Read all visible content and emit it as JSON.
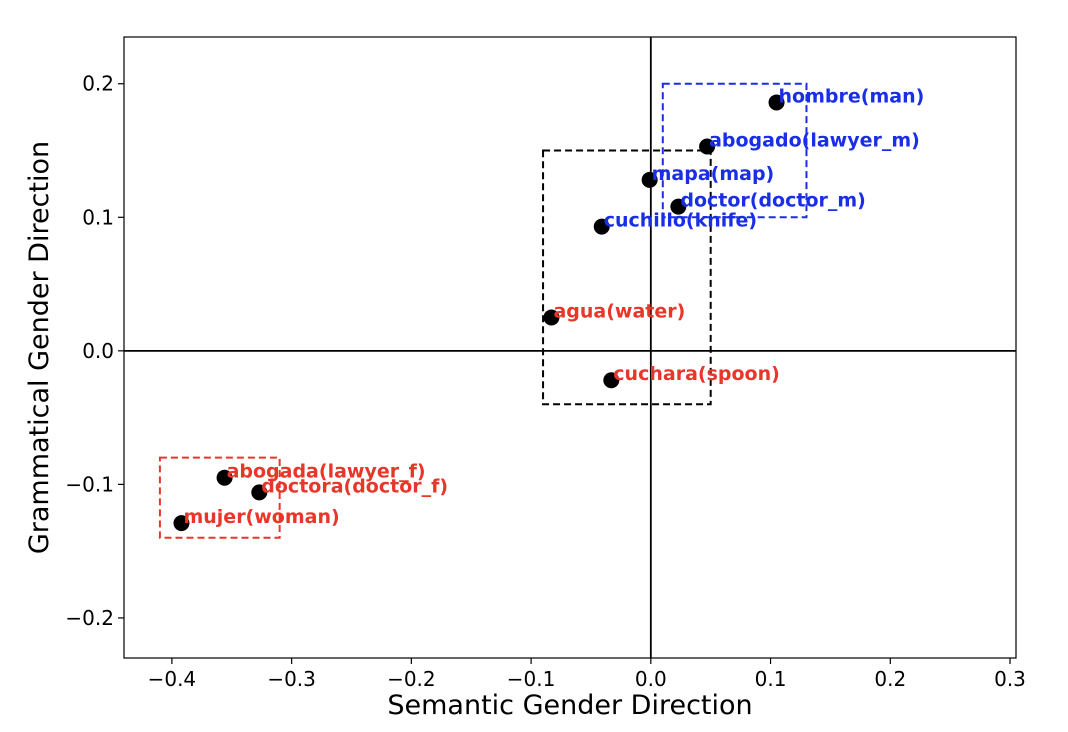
{
  "chart_data": {
    "type": "scatter",
    "xlabel": "Semantic Gender Direction",
    "ylabel": "Grammatical Gender Direction",
    "xlim": [
      -0.44,
      0.305
    ],
    "ylim": [
      -0.23,
      0.235
    ],
    "xticks": [
      -0.4,
      -0.3,
      -0.2,
      -0.1,
      0.0,
      0.1,
      0.2,
      0.3
    ],
    "yticks": [
      -0.2,
      -0.1,
      0.0,
      0.1,
      0.2
    ],
    "xtick_labels": [
      "−0.4",
      "−0.3",
      "−0.2",
      "−0.1",
      "0.0",
      "0.1",
      "0.2",
      "0.3"
    ],
    "ytick_labels": [
      "−0.2",
      "−0.1",
      "0.0",
      "0.1",
      "0.2"
    ],
    "grid": false,
    "reference_lines": {
      "x": 0.0,
      "y": 0.0
    },
    "points": [
      {
        "label": "hombre(man)",
        "x": 0.105,
        "y": 0.186,
        "color": "#1a2ee6"
      },
      {
        "label": "abogado(lawyer_m)",
        "x": 0.047,
        "y": 0.153,
        "color": "#1a2ee6"
      },
      {
        "label": "mapa(map)",
        "x": -0.001,
        "y": 0.128,
        "color": "#1a2ee6"
      },
      {
        "label": "doctor(doctor_m)",
        "x": 0.023,
        "y": 0.108,
        "color": "#1a2ee6"
      },
      {
        "label": "cuchillo(knife)",
        "x": -0.041,
        "y": 0.093,
        "color": "#1a2ee6"
      },
      {
        "label": "agua(water)",
        "x": -0.083,
        "y": 0.025,
        "color": "#e8362a"
      },
      {
        "label": "cuchara(spoon)",
        "x": -0.033,
        "y": -0.022,
        "color": "#e8362a"
      },
      {
        "label": "abogada(lawyer_f)",
        "x": -0.356,
        "y": -0.095,
        "color": "#e8362a"
      },
      {
        "label": "doctora(doctor_f)",
        "x": -0.327,
        "y": -0.106,
        "color": "#e8362a"
      },
      {
        "label": "mujer(woman)",
        "x": -0.392,
        "y": -0.129,
        "color": "#e8362a"
      }
    ],
    "boxes": [
      {
        "x0": 0.01,
        "x1": 0.13,
        "y0": 0.1,
        "y1": 0.2,
        "color": "#1a2ee6"
      },
      {
        "x0": -0.09,
        "x1": 0.05,
        "y0": -0.04,
        "y1": 0.15,
        "color": "#000000"
      },
      {
        "x0": -0.41,
        "x1": -0.31,
        "y0": -0.14,
        "y1": -0.08,
        "color": "#e8362a"
      }
    ]
  }
}
